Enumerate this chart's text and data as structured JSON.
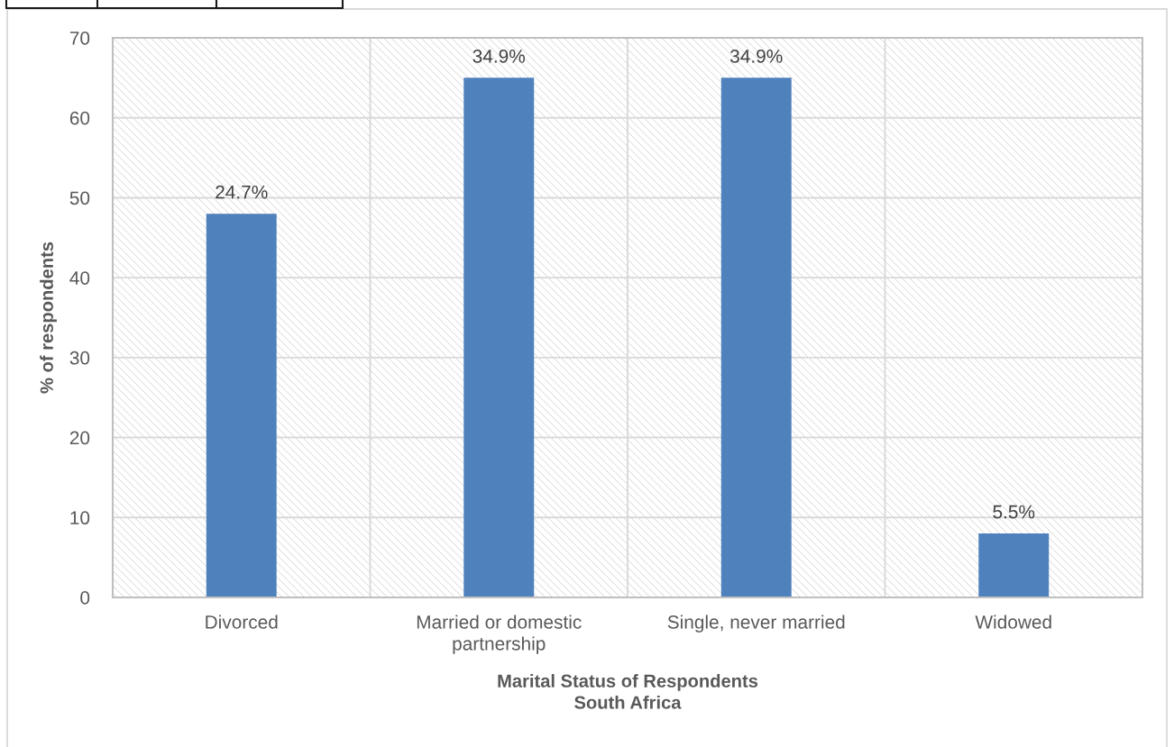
{
  "chart_data": {
    "type": "bar",
    "xlabel": "Marital Status of Respondents\nSouth Africa",
    "ylabel": "% of respondents",
    "categories": [
      "Divorced",
      "Married or domestic partnership",
      "Single, never married",
      "Widowed"
    ],
    "values": [
      48,
      65,
      65,
      8
    ],
    "color": "#4f81bd",
    "annotations": [
      {
        "text": "24.7%",
        "x": "Divorced",
        "y": 48
      },
      {
        "text": "34.9%",
        "x": "Married or domestic partnership",
        "y": 65
      },
      {
        "text": "34.9%",
        "x": "Single, never married",
        "y": 65
      },
      {
        "text": "5.5%",
        "x": "Widowed",
        "y": 8
      }
    ],
    "ylim": [
      0,
      70
    ],
    "yticks": [
      0,
      10,
      20,
      30,
      40,
      50,
      60,
      70
    ],
    "grid": true
  }
}
